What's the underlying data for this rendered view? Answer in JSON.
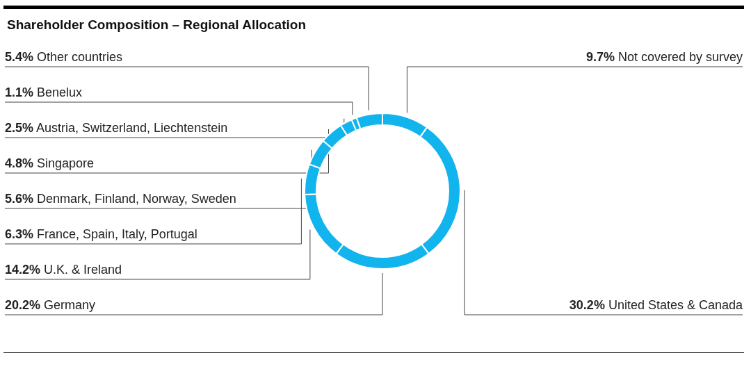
{
  "chart_data": {
    "type": "donut",
    "title": "Shareholder Composition – Regional Allocation",
    "categories": [
      "Not covered by survey",
      "United States & Canada",
      "Germany",
      "U.K. & Ireland",
      "France, Spain, Italy, Portugal",
      "Denmark, Finland, Norway, Sweden",
      "Singapore",
      "Austria, Switzerland, Liechtenstein",
      "Benelux",
      "Other countries"
    ],
    "values": [
      9.7,
      30.2,
      20.2,
      14.2,
      6.3,
      5.6,
      4.8,
      2.5,
      1.1,
      5.4
    ],
    "colors": [
      "#12b4ee",
      "#12b4ee",
      "#12b4ee",
      "#12b4ee",
      "#12b4ee",
      "#12b4ee",
      "#12b4ee",
      "#12b4ee",
      "#12b4ee",
      "#12b4ee"
    ],
    "value_labels": [
      "9.7%",
      "30.2%",
      "20.2%",
      "14.2%",
      "6.3%",
      "5.6%",
      "4.8%",
      "2.5%",
      "1.1%",
      "5.4%"
    ],
    "legend": false
  }
}
